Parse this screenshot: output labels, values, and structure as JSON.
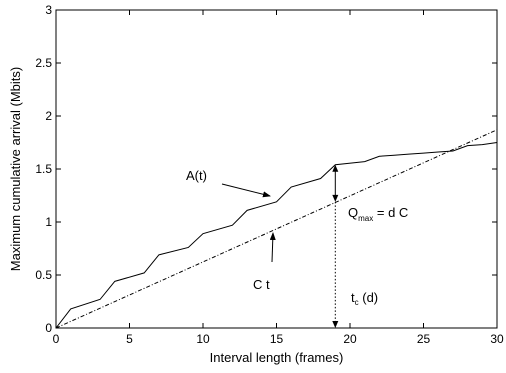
{
  "chart_data": {
    "type": "line",
    "xlabel": "Interval length (frames)",
    "ylabel": "Maximum cumulative arrival (Mbits)",
    "xlim": [
      0,
      30
    ],
    "ylim": [
      0,
      3
    ],
    "x_ticks": [
      0,
      5,
      10,
      15,
      20,
      25,
      30
    ],
    "y_ticks": [
      0,
      0.5,
      1,
      1.5,
      2,
      2.5,
      3
    ],
    "x_tick_labels": [
      "0",
      "5",
      "10",
      "15",
      "20",
      "25",
      "30"
    ],
    "y_tick_labels": [
      "0",
      "0.5",
      "1",
      "1.5",
      "2",
      "2.5",
      "3"
    ],
    "grid": false,
    "series": [
      {
        "name": "A(t)",
        "style": "solid",
        "x": [
          0,
          1,
          3,
          4,
          6,
          7,
          9,
          10,
          12,
          13,
          15,
          16,
          18,
          19,
          21,
          22,
          23,
          24,
          25,
          26,
          27,
          28,
          29,
          30
        ],
        "y": [
          0,
          0.18,
          0.27,
          0.44,
          0.52,
          0.69,
          0.76,
          0.89,
          0.97,
          1.11,
          1.19,
          1.33,
          1.41,
          1.54,
          1.57,
          1.62,
          1.63,
          1.64,
          1.65,
          1.66,
          1.67,
          1.72,
          1.73,
          1.75
        ]
      },
      {
        "name": "C t",
        "style": "dashdot",
        "x": [
          0,
          30
        ],
        "y": [
          0,
          1.87
        ]
      }
    ],
    "annotations": {
      "a_label": "A(t)",
      "c_label": "C t",
      "q_label_main": "Q",
      "q_label_sub": "max",
      "q_label_rest": " = d C",
      "t_label_main": "t",
      "t_label_sub": "c",
      "t_label_rest": " (d)",
      "marker_x": 19,
      "q_top": 1.54,
      "q_bottom": 1.19
    }
  }
}
